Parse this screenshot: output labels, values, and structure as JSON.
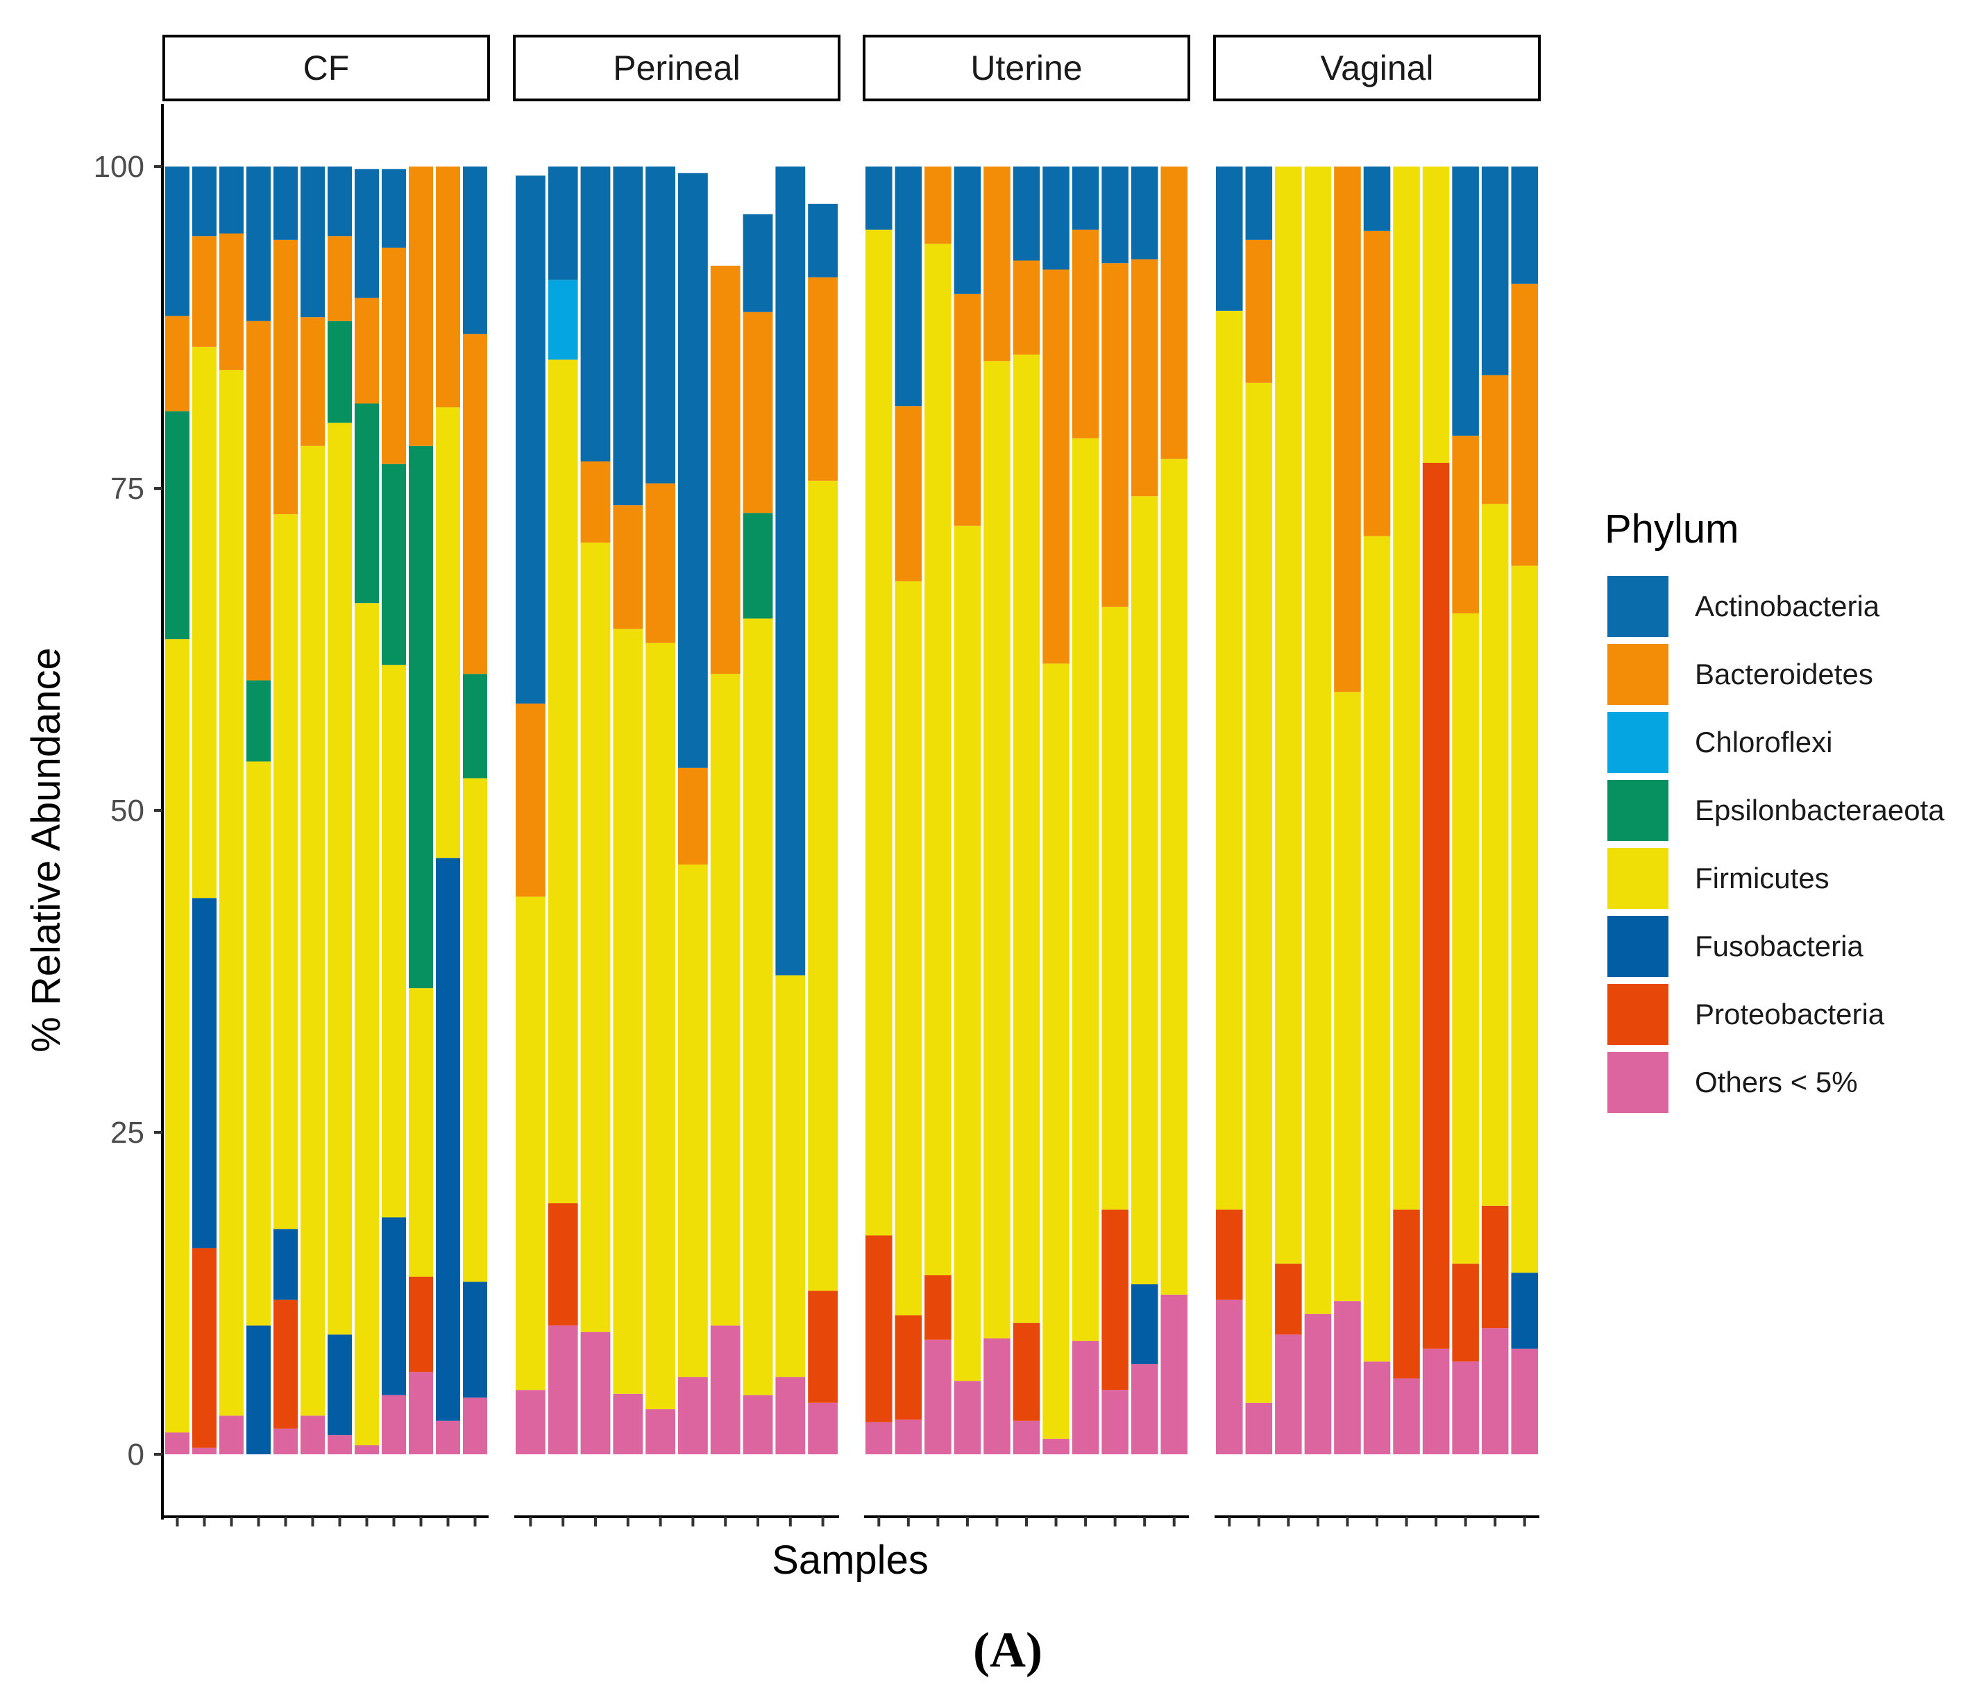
{
  "chart_data": {
    "type": "bar",
    "stacked": true,
    "facet_labels": [
      "CF",
      "Perineal",
      "Uterine",
      "Vaginal"
    ],
    "xlabel": "Samples",
    "ylabel": "% Relative Abundance",
    "ylim": [
      0,
      100
    ],
    "y_ticks": [
      "0",
      "25",
      "50",
      "75",
      "100"
    ],
    "panel_label": "(A)",
    "legend_title": "Phylum",
    "legend_position": "right",
    "series": [
      {
        "name": "Actinobacteria",
        "color": "#0a6cab"
      },
      {
        "name": "Bacteroidetes",
        "color": "#f38c06"
      },
      {
        "name": "Chloroflexi",
        "color": "#05a5e2"
      },
      {
        "name": "Epsilonbacteraeota",
        "color": "#079160"
      },
      {
        "name": "Firmicutes",
        "color": "#efdf07"
      },
      {
        "name": "Fusobacteria",
        "color": "#025da5"
      },
      {
        "name": "Proteobacteria",
        "color": "#e8470a"
      },
      {
        "name": "Others < 5%",
        "color": "#dc65a0"
      }
    ],
    "stack_order_bottom_to_top": [
      "Others < 5%",
      "Proteobacteria",
      "Fusobacteria",
      "Firmicutes",
      "Epsilonbacteraeota",
      "Chloroflexi",
      "Bacteroidetes",
      "Actinobacteria"
    ],
    "facets": [
      {
        "name": "CF",
        "samples": [
          {
            "Others < 5%": 1.7,
            "Firmicutes": 61.6,
            "Epsilonbacteraeota": 17.7,
            "Bacteroidetes": 7.4,
            "Actinobacteria": 11.6
          },
          {
            "Others < 5%": 0.5,
            "Proteobacteria": 15.5,
            "Fusobacteria": 27.2,
            "Firmicutes": 42.8,
            "Bacteroidetes": 8.6,
            "Actinobacteria": 5.4
          },
          {
            "Others < 5%": 3.0,
            "Firmicutes": 81.2,
            "Bacteroidetes": 10.6,
            "Actinobacteria": 5.2
          },
          {
            "Fusobacteria": 10.0,
            "Firmicutes": 43.8,
            "Epsilonbacteraeota": 6.3,
            "Bacteroidetes": 27.9,
            "Actinobacteria": 12.0
          },
          {
            "Others < 5%": 2.0,
            "Proteobacteria": 10.0,
            "Fusobacteria": 5.5,
            "Firmicutes": 55.5,
            "Bacteroidetes": 21.3,
            "Actinobacteria": 5.7
          },
          {
            "Others < 5%": 3.0,
            "Firmicutes": 75.3,
            "Bacteroidetes": 10.0,
            "Actinobacteria": 11.7
          },
          {
            "Others < 5%": 1.5,
            "Fusobacteria": 7.8,
            "Firmicutes": 70.8,
            "Epsilonbacteraeota": 7.9,
            "Bacteroidetes": 6.6,
            "Actinobacteria": 5.4
          },
          {
            "Others < 5%": 0.7,
            "Firmicutes": 65.4,
            "Epsilonbacteraeota": 15.5,
            "Bacteroidetes": 8.2,
            "Actinobacteria": 10.0
          },
          {
            "Others < 5%": 4.6,
            "Fusobacteria": 13.8,
            "Firmicutes": 42.9,
            "Epsilonbacteraeota": 15.6,
            "Bacteroidetes": 16.8,
            "Actinobacteria": 6.1
          },
          {
            "Others < 5%": 6.4,
            "Proteobacteria": 7.4,
            "Firmicutes": 22.4,
            "Epsilonbacteraeota": 42.1,
            "Bacteroidetes": 21.7
          },
          {
            "Others < 5%": 2.6,
            "Fusobacteria": 43.7,
            "Firmicutes": 35.0,
            "Bacteroidetes": 18.7
          },
          {
            "Others < 5%": 4.4,
            "Fusobacteria": 9.0,
            "Firmicutes": 39.1,
            "Epsilonbacteraeota": 8.1,
            "Bacteroidetes": 26.4,
            "Actinobacteria": 13.0
          }
        ]
      },
      {
        "name": "Perineal",
        "samples": [
          {
            "Others < 5%": 5.0,
            "Firmicutes": 38.3,
            "Bacteroidetes": 15.0,
            "Actinobacteria": 41.0
          },
          {
            "Others < 5%": 10.0,
            "Proteobacteria": 9.5,
            "Firmicutes": 65.5,
            "Chloroflexi": 6.2,
            "Actinobacteria": 8.8
          },
          {
            "Others < 5%": 9.5,
            "Firmicutes": 61.3,
            "Bacteroidetes": 6.3,
            "Actinobacteria": 22.9
          },
          {
            "Others < 5%": 4.7,
            "Firmicutes": 59.4,
            "Bacteroidetes": 9.6,
            "Actinobacteria": 26.3
          },
          {
            "Others < 5%": 3.5,
            "Firmicutes": 59.5,
            "Bacteroidetes": 12.4,
            "Actinobacteria": 24.6
          },
          {
            "Others < 5%": 6.0,
            "Firmicutes": 39.8,
            "Bacteroidetes": 7.5,
            "Actinobacteria": 46.2
          },
          {
            "Others < 5%": 10.0,
            "Firmicutes": 50.6,
            "Bacteroidetes": 31.7
          },
          {
            "Others < 5%": 4.6,
            "Firmicutes": 60.3,
            "Epsilonbacteraeota": 8.2,
            "Bacteroidetes": 15.6,
            "Actinobacteria": 7.6
          },
          {
            "Others < 5%": 6.0,
            "Firmicutes": 31.2,
            "Actinobacteria": 62.8
          },
          {
            "Others < 5%": 4.0,
            "Proteobacteria": 8.7,
            "Firmicutes": 62.9,
            "Bacteroidetes": 15.8,
            "Actinobacteria": 5.7
          }
        ]
      },
      {
        "name": "Uterine",
        "samples": [
          {
            "Others < 5%": 2.5,
            "Proteobacteria": 14.5,
            "Firmicutes": 78.1,
            "Actinobacteria": 4.9
          },
          {
            "Others < 5%": 2.7,
            "Proteobacteria": 8.1,
            "Firmicutes": 57.0,
            "Bacteroidetes": 13.6,
            "Actinobacteria": 18.6
          },
          {
            "Others < 5%": 8.9,
            "Proteobacteria": 5.0,
            "Firmicutes": 80.1,
            "Bacteroidetes": 6.0
          },
          {
            "Others < 5%": 5.7,
            "Firmicutes": 66.4,
            "Bacteroidetes": 18.0,
            "Actinobacteria": 9.9
          },
          {
            "Others < 5%": 9.0,
            "Firmicutes": 75.9,
            "Bacteroidetes": 15.1
          },
          {
            "Others < 5%": 2.6,
            "Proteobacteria": 7.6,
            "Firmicutes": 75.2,
            "Bacteroidetes": 7.3,
            "Actinobacteria": 7.3
          },
          {
            "Others < 5%": 1.2,
            "Firmicutes": 60.2,
            "Bacteroidetes": 30.6,
            "Actinobacteria": 8.0
          },
          {
            "Others < 5%": 8.8,
            "Firmicutes": 70.1,
            "Bacteroidetes": 16.2,
            "Actinobacteria": 4.9
          },
          {
            "Others < 5%": 5.0,
            "Proteobacteria": 14.0,
            "Firmicutes": 46.8,
            "Bacteroidetes": 26.7,
            "Actinobacteria": 7.5
          },
          {
            "Others < 5%": 7.0,
            "Fusobacteria": 6.2,
            "Firmicutes": 61.2,
            "Bacteroidetes": 18.4,
            "Actinobacteria": 7.2
          },
          {
            "Others < 5%": 12.4,
            "Firmicutes": 64.9,
            "Bacteroidetes": 22.7
          }
        ]
      },
      {
        "name": "Vaginal",
        "samples": [
          {
            "Others < 5%": 12.0,
            "Proteobacteria": 7.0,
            "Firmicutes": 69.8,
            "Actinobacteria": 11.2
          },
          {
            "Others < 5%": 4.0,
            "Firmicutes": 79.2,
            "Bacteroidetes": 11.1,
            "Actinobacteria": 5.7
          },
          {
            "Others < 5%": 9.3,
            "Proteobacteria": 5.5,
            "Firmicutes": 85.2
          },
          {
            "Others < 5%": 10.9,
            "Firmicutes": 89.1
          },
          {
            "Others < 5%": 11.9,
            "Firmicutes": 47.3,
            "Bacteroidetes": 40.8
          },
          {
            "Others < 5%": 7.2,
            "Firmicutes": 64.1,
            "Bacteroidetes": 23.7,
            "Actinobacteria": 5.0
          },
          {
            "Others < 5%": 5.9,
            "Proteobacteria": 13.1,
            "Firmicutes": 81.0
          },
          {
            "Others < 5%": 8.2,
            "Proteobacteria": 68.8,
            "Firmicutes": 23.0
          },
          {
            "Others < 5%": 7.2,
            "Proteobacteria": 7.6,
            "Firmicutes": 50.5,
            "Bacteroidetes": 13.8,
            "Actinobacteria": 20.9
          },
          {
            "Others < 5%": 9.8,
            "Proteobacteria": 9.5,
            "Firmicutes": 54.5,
            "Bacteroidetes": 10.0,
            "Actinobacteria": 16.2
          },
          {
            "Others < 5%": 8.2,
            "Fusobacteria": 5.9,
            "Firmicutes": 54.9,
            "Bacteroidetes": 21.9,
            "Actinobacteria": 9.1
          }
        ]
      }
    ]
  }
}
